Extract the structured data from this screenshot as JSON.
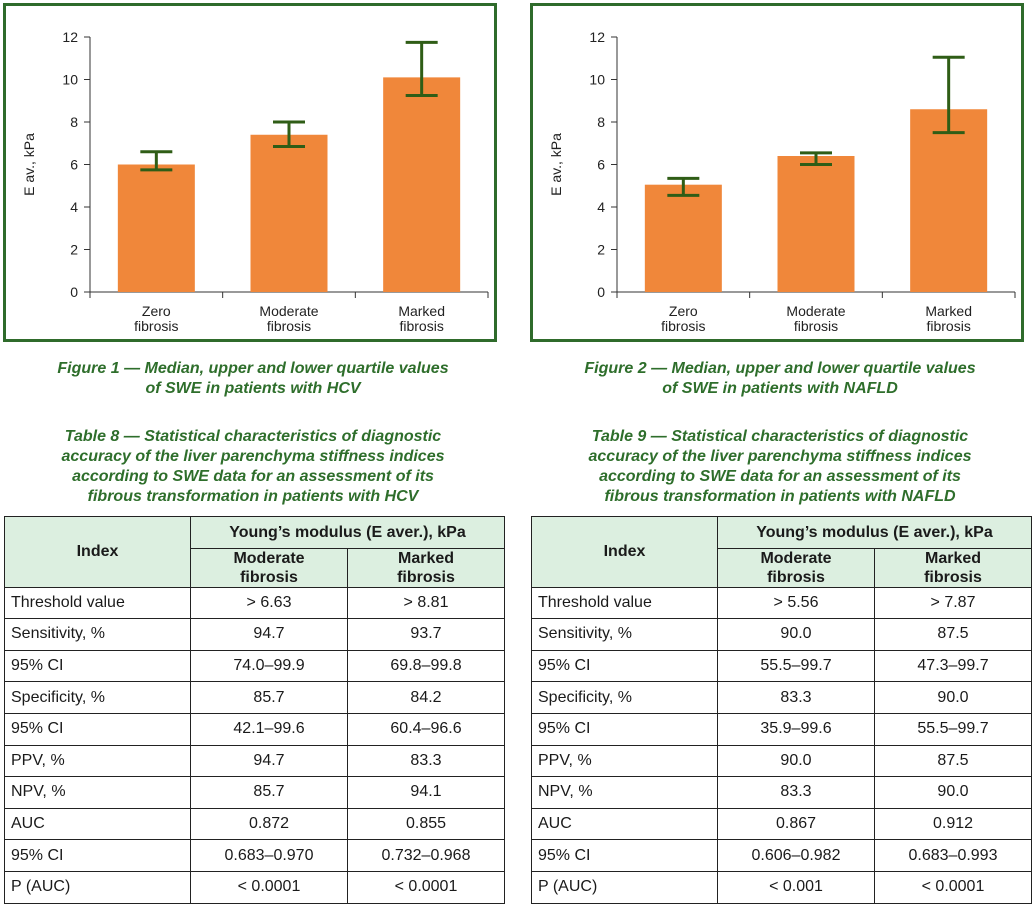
{
  "figures": [
    {
      "caption_line1": "Figure 1 — Median, upper and lower quartile values",
      "caption_line2": "of SWE in patients with HCV"
    },
    {
      "caption_line1": "Figure 2 — Median, upper and lower quartile values",
      "caption_line2": "of SWE in patients with NAFLD"
    }
  ],
  "chart_data": [
    {
      "type": "bar",
      "ylabel": "E av., kPa",
      "ylim": [
        0,
        12
      ],
      "yticks": [
        "0",
        "2",
        "4",
        "6",
        "8",
        "10",
        "12"
      ],
      "categories": [
        [
          "Zero",
          "fibrosis"
        ],
        [
          "Moderate",
          "fibrosis"
        ],
        [
          "Marked",
          "fibrosis"
        ]
      ],
      "values": [
        6.0,
        7.4,
        10.1
      ],
      "lower_quartile": [
        5.75,
        6.85,
        9.25
      ],
      "upper_quartile": [
        6.6,
        8.0,
        11.75
      ],
      "bar_color": "#f0873a",
      "whisker_color": "#2f5d16"
    },
    {
      "type": "bar",
      "ylabel": "E av., kPa",
      "ylim": [
        0,
        12
      ],
      "yticks": [
        "0",
        "2",
        "4",
        "6",
        "8",
        "10",
        "12"
      ],
      "categories": [
        [
          "Zero",
          "fibrosis"
        ],
        [
          "Moderate",
          "fibrosis"
        ],
        [
          "Marked",
          "fibrosis"
        ]
      ],
      "values": [
        5.05,
        6.4,
        8.6
      ],
      "lower_quartile": [
        4.55,
        6.0,
        7.5
      ],
      "upper_quartile": [
        5.35,
        6.55,
        11.05
      ],
      "bar_color": "#f0873a",
      "whisker_color": "#2f5d16"
    }
  ],
  "tables": [
    {
      "caption": [
        "Table 8 — Statistical characteristics of diagnostic",
        "accuracy of the liver parenchyma stiffness indices",
        "according to SWE data for an assessment of its",
        "fibrous transformation in patients with HCV"
      ],
      "header_index": "Index",
      "header_group": "Young’s modulus (E aver.), kPa",
      "header_cols": [
        [
          "Moderate",
          "fibrosis"
        ],
        [
          "Marked",
          "fibrosis"
        ]
      ],
      "rows": [
        [
          "Threshold value",
          "> 6.63",
          "> 8.81"
        ],
        [
          "Sensitivity, %",
          "94.7",
          "93.7"
        ],
        [
          "95% CI",
          "74.0–99.9",
          "69.8–99.8"
        ],
        [
          "Specificity, %",
          "85.7",
          "84.2"
        ],
        [
          "95% CI",
          "42.1–99.6",
          "60.4–96.6"
        ],
        [
          "PPV, %",
          "94.7",
          "83.3"
        ],
        [
          "NPV, %",
          "85.7",
          "94.1"
        ],
        [
          "AUC",
          "0.872",
          "0.855"
        ],
        [
          "95% CI",
          "0.683–0.970",
          "0.732–0.968"
        ],
        [
          "P (AUC)",
          "< 0.0001",
          "< 0.0001"
        ]
      ]
    },
    {
      "caption": [
        "Table 9 — Statistical characteristics of diagnostic",
        "accuracy of the liver parenchyma stiffness indices",
        "according to SWE data for an assessment of its",
        "fibrous transformation in patients with NAFLD"
      ],
      "header_index": "Index",
      "header_group": "Young’s modulus (E aver.), kPa",
      "header_cols": [
        [
          "Moderate",
          "fibrosis"
        ],
        [
          "Marked",
          "fibrosis"
        ]
      ],
      "rows": [
        [
          "Threshold value",
          "> 5.56",
          "> 7.87"
        ],
        [
          "Sensitivity, %",
          "90.0",
          "87.5"
        ],
        [
          "95% CI",
          "55.5–99.7",
          "47.3–99.7"
        ],
        [
          "Specificity, %",
          "83.3",
          "90.0"
        ],
        [
          "95% CI",
          "35.9–99.6",
          "55.5–99.7"
        ],
        [
          "PPV, %",
          "90.0",
          "87.5"
        ],
        [
          "NPV, %",
          "83.3",
          "90.0"
        ],
        [
          "AUC",
          "0.867",
          "0.912"
        ],
        [
          "95% CI",
          "0.606–0.982",
          "0.683–0.993"
        ],
        [
          "P (AUC)",
          "< 0.001",
          "< 0.0001"
        ]
      ]
    }
  ]
}
